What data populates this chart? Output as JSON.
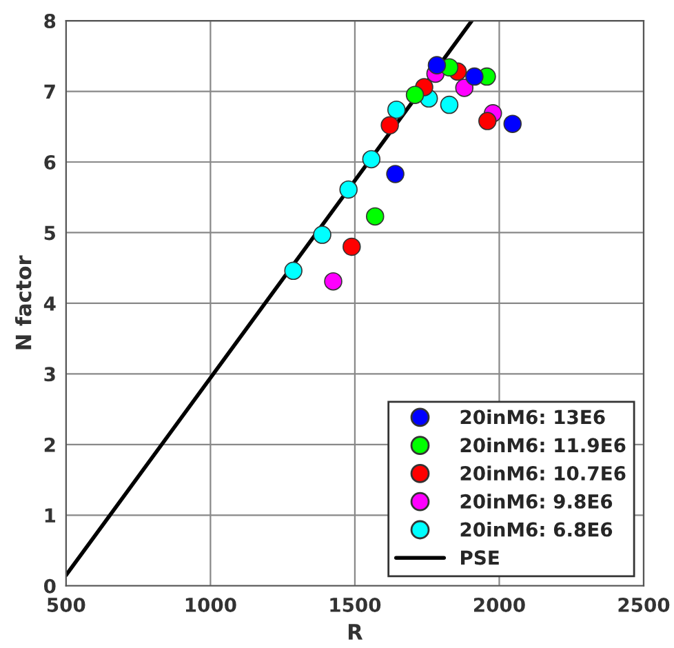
{
  "chart_data": {
    "type": "scatter",
    "xlabel": "R",
    "ylabel": "N factor",
    "xlim": [
      500,
      2500
    ],
    "xticks": [
      500,
      1000,
      1500,
      2000,
      2500
    ],
    "ylim": [
      0,
      8
    ],
    "yticks": [
      0,
      1,
      2,
      3,
      4,
      5,
      6,
      7,
      8
    ],
    "grid": true,
    "legend": "bottom right",
    "marker": "circle",
    "series": [
      {
        "name": "20inM6: 13E6",
        "color": "#0000ff",
        "x": [
          1640,
          1784,
          1914,
          2046
        ],
        "values": [
          5.83,
          7.37,
          7.21,
          6.54
        ]
      },
      {
        "name": "20inM6: 11.9E6",
        "color": "#00ff00",
        "x": [
          1570,
          1708,
          1827,
          1957
        ],
        "values": [
          5.23,
          6.95,
          7.34,
          7.21
        ]
      },
      {
        "name": "20inM6: 10.7E6",
        "color": "#ff0000",
        "x": [
          1489,
          1621,
          1740,
          1856,
          1959
        ],
        "values": [
          4.8,
          6.52,
          7.06,
          7.28,
          6.58
        ]
      },
      {
        "name": "20inM6: 9.8E6",
        "color": "#ff00ff",
        "x": [
          1425,
          1545,
          1665,
          1779,
          1879,
          1978
        ],
        "values": [
          4.31,
          null,
          null,
          7.25,
          7.05,
          6.69
        ]
      },
      {
        "name": "20inM6: 6.8E6",
        "color": "#00ffff",
        "x": [
          1287,
          1387,
          1478,
          1557,
          1644,
          1756,
          1827
        ],
        "values": [
          4.46,
          4.97,
          5.61,
          6.04,
          6.74,
          6.9,
          6.81
        ]
      },
      {
        "name": "PSE",
        "type": "line",
        "color": "#000000",
        "line_style": "solid",
        "marker": "none",
        "x": [
          500,
          1905
        ],
        "values": [
          0.15,
          8
        ]
      }
    ]
  }
}
